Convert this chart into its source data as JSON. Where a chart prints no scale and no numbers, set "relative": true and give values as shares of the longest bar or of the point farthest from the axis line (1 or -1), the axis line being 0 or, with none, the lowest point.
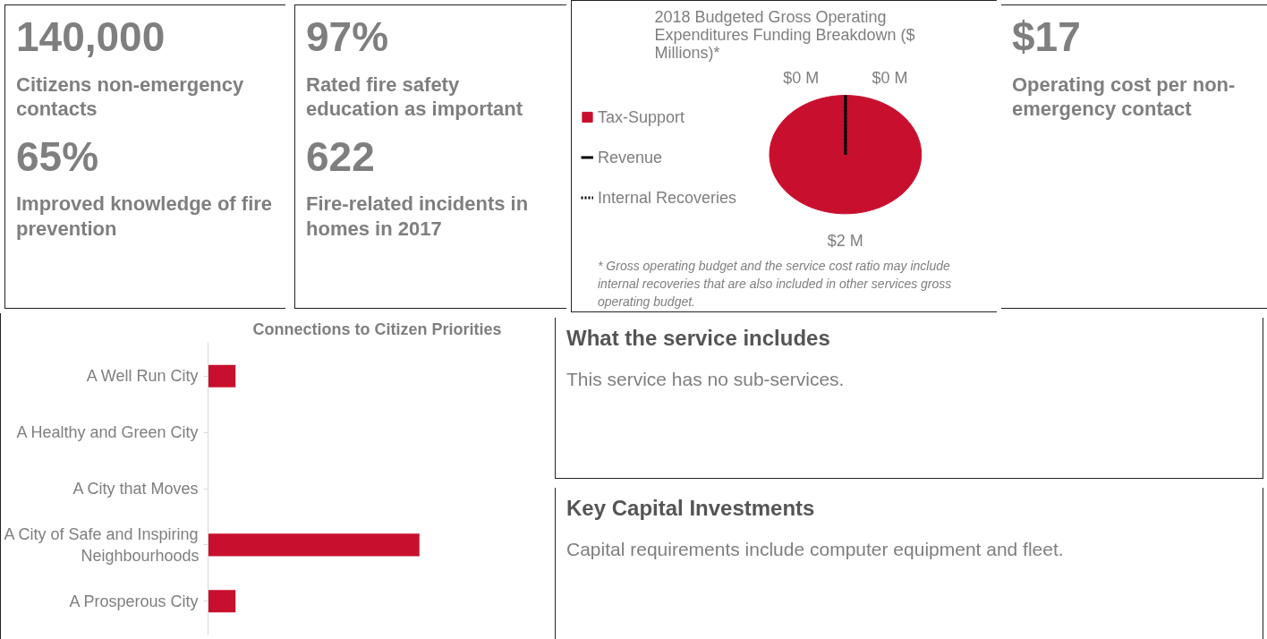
{
  "chart_data": [
    {
      "type": "other",
      "annotations": [
        "140,000",
        "Citizens non-emergency contacts",
        "65%",
        "Improved knowledge of fire prevention"
      ]
    },
    {
      "type": "other",
      "annotations": [
        "97%",
        "Rated fire safety education as important",
        "622",
        "Fire-related incidents in homes in 2017"
      ]
    },
    {
      "type": "pie",
      "title": "2018 Budgeted Gross Operating Expenditures Funding Breakdown ($ Millions)*",
      "categories": [
        "Tax-Support",
        "Revenue",
        "Internal Recoveries"
      ],
      "values": [
        2,
        0,
        0
      ],
      "colors": [
        "#c8102e",
        "#000000",
        "#ffffff"
      ],
      "value_labels": [
        "$2 M",
        "$0 M",
        "$0 M"
      ],
      "legend": "left",
      "annotations": [
        "* Gross operating budget and the service cost ratio may include internal recoveries that are also included in other services gross operating budget."
      ]
    },
    {
      "type": "other",
      "annotations": [
        "$17",
        "Operating cost per non-emergency contact"
      ]
    },
    {
      "type": "bar",
      "orientation": "horizontal",
      "relative": true,
      "title": "Connections to Citizen Priorities",
      "categories": [
        "A Well Run City",
        "A Healthy and Green City",
        "A City that Moves",
        "A City of Safe and Inspiring Neighbourhoods",
        "A Prosperous City"
      ],
      "values": [
        0.13,
        0,
        0,
        1,
        0.13
      ],
      "color": "#c8102e",
      "grid": false
    },
    {
      "type": "other",
      "title": "What the service includes",
      "annotations": [
        "This service has no sub-services."
      ]
    },
    {
      "type": "other",
      "title": "Key Capital Investments",
      "annotations": [
        "Capital requirements include computer equipment and fleet."
      ]
    }
  ]
}
